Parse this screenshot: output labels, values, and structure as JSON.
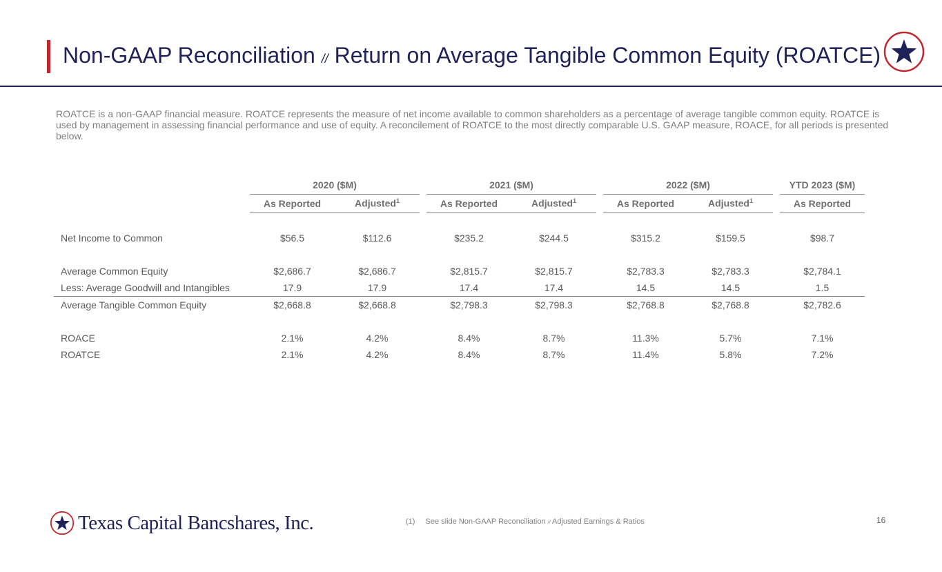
{
  "header": {
    "title_part1": "Non-GAAP Reconciliation",
    "title_separator": "//",
    "title_part2": "Return on Average Tangible Common Equity (ROATCE)",
    "accent_color": "#c0282d",
    "brand_color": "#1f2258"
  },
  "intro_text": "ROATCE is a non-GAAP financial measure.  ROATCE represents the measure of net income available to common shareholders as a percentage of average tangible common equity.  ROATCE is used by management in assessing financial performance and use of equity.  A reconcilement of ROATCE to the most directly comparable U.S. GAAP measure, ROACE, for all periods is presented below.",
  "table": {
    "groups": [
      "2020 ($M)",
      "2021 ($M)",
      "2022 ($M)",
      "YTD 2023 ($M)"
    ],
    "sub_headers": {
      "as_reported": "As Reported",
      "adjusted": "Adjusted",
      "footnote_mark": "1"
    },
    "rows": [
      {
        "label": "Net Income to Common",
        "values": [
          "$56.5",
          "$112.6",
          "$235.2",
          "$244.5",
          "$315.2",
          "$159.5",
          "$98.7"
        ]
      },
      {
        "label": "Average Common Equity",
        "values": [
          "$2,686.7",
          "$2,686.7",
          "$2,815.7",
          "$2,815.7",
          "$2,783.3",
          "$2,783.3",
          "$2,784.1"
        ]
      },
      {
        "label": "Less: Average Goodwill and Intangibles",
        "values": [
          "17.9",
          "17.9",
          "17.4",
          "17.4",
          "14.5",
          "14.5",
          "1.5"
        ]
      },
      {
        "label": "Average Tangible Common Equity",
        "values": [
          "$2,668.8",
          "$2,668.8",
          "$2,798.3",
          "$2,798.3",
          "$2,768.8",
          "$2,768.8",
          "$2,782.6"
        ]
      },
      {
        "label": "ROACE",
        "values": [
          "2.1%",
          "4.2%",
          "8.4%",
          "8.7%",
          "11.3%",
          "5.7%",
          "7.1%"
        ]
      },
      {
        "label": "ROATCE",
        "values": [
          "2.1%",
          "4.2%",
          "8.4%",
          "8.7%",
          "11.4%",
          "5.8%",
          "7.2%"
        ]
      }
    ]
  },
  "footer": {
    "company_name": "Texas Capital Bancshares, Inc.",
    "footnote_ref": "(1)",
    "footnote_text_part1": "See slide Non-GAAP Reconciliation",
    "footnote_separator": "//",
    "footnote_text_part2": "Adjusted Earnings & Ratios",
    "page_number": "16"
  },
  "icons": {
    "emblem": "star-emblem-icon"
  }
}
